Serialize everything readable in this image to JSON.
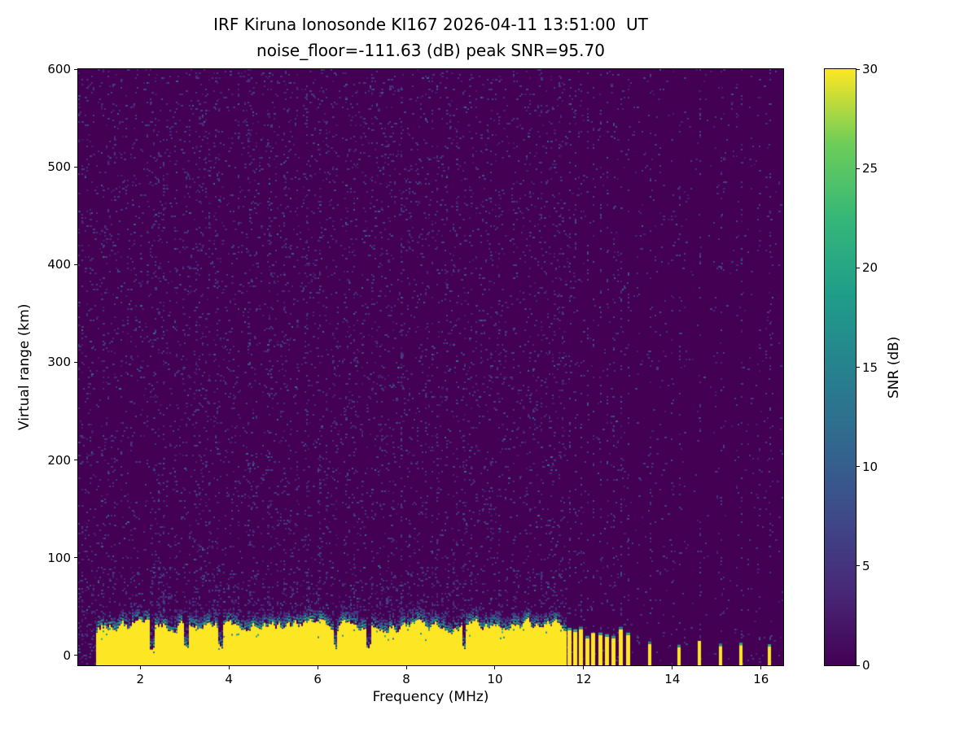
{
  "chart_data": {
    "type": "heatmap",
    "title": "IRF Kiruna Ionosonde KI167 2026-04-11 13:51:00  UT",
    "subtitle": "noise_floor=-111.63 (dB) peak SNR=95.70",
    "xlabel": "Frequency (MHz)",
    "ylabel": "Virtual range (km)",
    "x_range": [
      0.6,
      16.5
    ],
    "y_range": [
      -10,
      600
    ],
    "x_ticks": [
      2,
      4,
      6,
      8,
      10,
      12,
      14,
      16
    ],
    "y_ticks": [
      0,
      100,
      200,
      300,
      400,
      500,
      600
    ],
    "colormap": "viridis",
    "colorbar": {
      "label": "SNR (dB)",
      "range": [
        0,
        30
      ],
      "ticks": [
        0,
        5,
        10,
        15,
        20,
        25,
        30
      ]
    },
    "noise_floor_db": -111.63,
    "peak_snr_db": 95.7,
    "ground_echo_band": {
      "freq_start_mhz": 1.0,
      "freq_end_mhz": 11.63,
      "top_km_min": 18,
      "top_km_max": 42,
      "snr_db": 30,
      "gap_freqs_mhz": [
        2.28,
        3.05,
        3.8,
        6.4,
        7.15,
        9.3
      ]
    },
    "sparse_echo_stripes_mhz": [
      11.68,
      11.81,
      11.94,
      12.08,
      12.22,
      12.37,
      12.52,
      12.68,
      12.84,
      13.0,
      13.5,
      14.15,
      14.62,
      15.1,
      15.55,
      16.2
    ],
    "background_noise": {
      "snr_db_range": [
        2,
        12
      ],
      "density": 0.05,
      "character": "speckle with vertical striping, sparser above 11.6 MHz"
    }
  }
}
